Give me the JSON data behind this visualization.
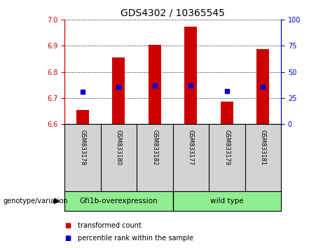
{
  "title": "GDS4302 / 10365545",
  "samples": [
    "GSM833178",
    "GSM833180",
    "GSM833182",
    "GSM833177",
    "GSM833179",
    "GSM833181"
  ],
  "bar_tops": [
    6.655,
    6.855,
    6.905,
    6.975,
    6.685,
    6.887
  ],
  "bar_bottom": 6.6,
  "percentile_values": [
    6.725,
    6.743,
    6.748,
    6.748,
    6.726,
    6.742
  ],
  "ylim_left": [
    6.6,
    7.0
  ],
  "ylim_right": [
    0,
    100
  ],
  "yticks_left": [
    6.6,
    6.7,
    6.8,
    6.9,
    7.0
  ],
  "yticks_right": [
    0,
    25,
    50,
    75,
    100
  ],
  "groups": [
    {
      "label": "Gfi1b-overexpression",
      "span": [
        0,
        2
      ],
      "color": "#90EE90"
    },
    {
      "label": "wild type",
      "span": [
        3,
        5
      ],
      "color": "#90EE90"
    }
  ],
  "group_label_prefix": "genotype/variation",
  "bar_color": "#CC0000",
  "bar_width": 0.35,
  "dot_color": "#0000CC",
  "dot_size": 25,
  "left_axis_color": "#CC0000",
  "right_axis_color": "#0000CC",
  "label_box_color": "#d3d3d3",
  "legend_items": [
    {
      "label": "transformed count",
      "color": "#CC0000"
    },
    {
      "label": "percentile rank within the sample",
      "color": "#0000CC"
    }
  ]
}
